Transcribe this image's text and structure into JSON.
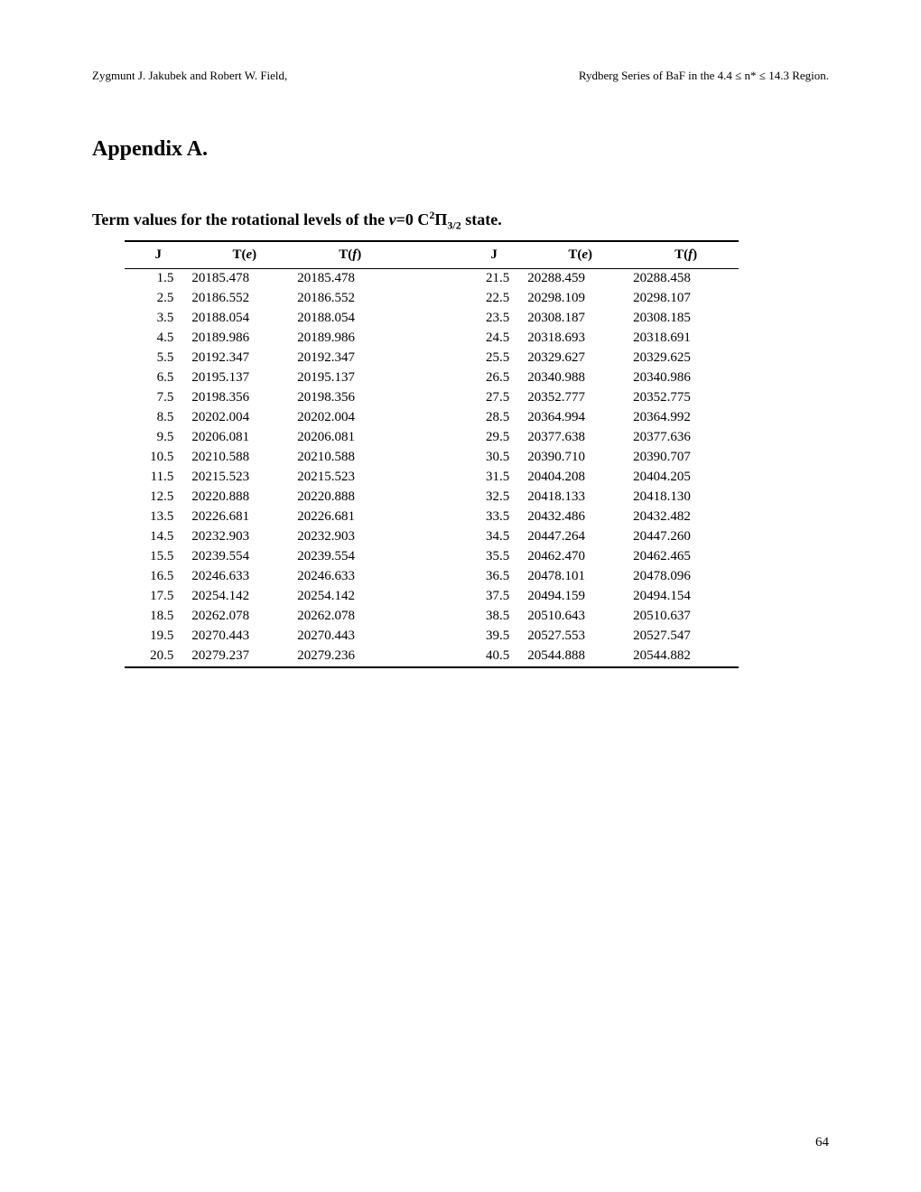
{
  "header": {
    "left": "Zygmunt J. Jakubek and Robert W. Field,",
    "right": "Rydberg Series of BaF in the 4.4 ≤ n* ≤ 14.3 Region."
  },
  "appendix_title": "Appendix A.",
  "table_caption_prefix": "Term values for the rotational levels of the ",
  "table_caption_v": "v",
  "table_caption_eq": "=0 C",
  "table_caption_sup": "2",
  "table_caption_pi": "Π",
  "table_caption_sub": "3/2",
  "table_caption_suffix": " state.",
  "columns": {
    "J": "J",
    "Te_T": "T(",
    "Te_e": "e",
    "Te_close": ")",
    "Tf_T": "T(",
    "Tf_f": "f",
    "Tf_close": ")"
  },
  "rows_left": [
    {
      "J": "1.5",
      "Te": "20185.478",
      "Tf": "20185.478"
    },
    {
      "J": "2.5",
      "Te": "20186.552",
      "Tf": "20186.552"
    },
    {
      "J": "3.5",
      "Te": "20188.054",
      "Tf": "20188.054"
    },
    {
      "J": "4.5",
      "Te": "20189.986",
      "Tf": "20189.986"
    },
    {
      "J": "5.5",
      "Te": "20192.347",
      "Tf": "20192.347"
    },
    {
      "J": "6.5",
      "Te": "20195.137",
      "Tf": "20195.137"
    },
    {
      "J": "7.5",
      "Te": "20198.356",
      "Tf": "20198.356"
    },
    {
      "J": "8.5",
      "Te": "20202.004",
      "Tf": "20202.004"
    },
    {
      "J": "9.5",
      "Te": "20206.081",
      "Tf": "20206.081"
    },
    {
      "J": "10.5",
      "Te": "20210.588",
      "Tf": "20210.588"
    },
    {
      "J": "11.5",
      "Te": "20215.523",
      "Tf": "20215.523"
    },
    {
      "J": "12.5",
      "Te": "20220.888",
      "Tf": "20220.888"
    },
    {
      "J": "13.5",
      "Te": "20226.681",
      "Tf": "20226.681"
    },
    {
      "J": "14.5",
      "Te": "20232.903",
      "Tf": "20232.903"
    },
    {
      "J": "15.5",
      "Te": "20239.554",
      "Tf": "20239.554"
    },
    {
      "J": "16.5",
      "Te": "20246.633",
      "Tf": "20246.633"
    },
    {
      "J": "17.5",
      "Te": "20254.142",
      "Tf": "20254.142"
    },
    {
      "J": "18.5",
      "Te": "20262.078",
      "Tf": "20262.078"
    },
    {
      "J": "19.5",
      "Te": "20270.443",
      "Tf": "20270.443"
    },
    {
      "J": "20.5",
      "Te": "20279.237",
      "Tf": "20279.236"
    }
  ],
  "rows_right": [
    {
      "J": "21.5",
      "Te": "20288.459",
      "Tf": "20288.458"
    },
    {
      "J": "22.5",
      "Te": "20298.109",
      "Tf": "20298.107"
    },
    {
      "J": "23.5",
      "Te": "20308.187",
      "Tf": "20308.185"
    },
    {
      "J": "24.5",
      "Te": "20318.693",
      "Tf": "20318.691"
    },
    {
      "J": "25.5",
      "Te": "20329.627",
      "Tf": "20329.625"
    },
    {
      "J": "26.5",
      "Te": "20340.988",
      "Tf": "20340.986"
    },
    {
      "J": "27.5",
      "Te": "20352.777",
      "Tf": "20352.775"
    },
    {
      "J": "28.5",
      "Te": "20364.994",
      "Tf": "20364.992"
    },
    {
      "J": "29.5",
      "Te": "20377.638",
      "Tf": "20377.636"
    },
    {
      "J": "30.5",
      "Te": "20390.710",
      "Tf": "20390.707"
    },
    {
      "J": "31.5",
      "Te": "20404.208",
      "Tf": "20404.205"
    },
    {
      "J": "32.5",
      "Te": "20418.133",
      "Tf": "20418.130"
    },
    {
      "J": "33.5",
      "Te": "20432.486",
      "Tf": "20432.482"
    },
    {
      "J": "34.5",
      "Te": "20447.264",
      "Tf": "20447.260"
    },
    {
      "J": "35.5",
      "Te": "20462.470",
      "Tf": "20462.465"
    },
    {
      "J": "36.5",
      "Te": "20478.101",
      "Tf": "20478.096"
    },
    {
      "J": "37.5",
      "Te": "20494.159",
      "Tf": "20494.154"
    },
    {
      "J": "38.5",
      "Te": "20510.643",
      "Tf": "20510.637"
    },
    {
      "J": "39.5",
      "Te": "20527.553",
      "Tf": "20527.547"
    },
    {
      "J": "40.5",
      "Te": "20544.888",
      "Tf": "20544.882"
    }
  ],
  "page_number": "64"
}
